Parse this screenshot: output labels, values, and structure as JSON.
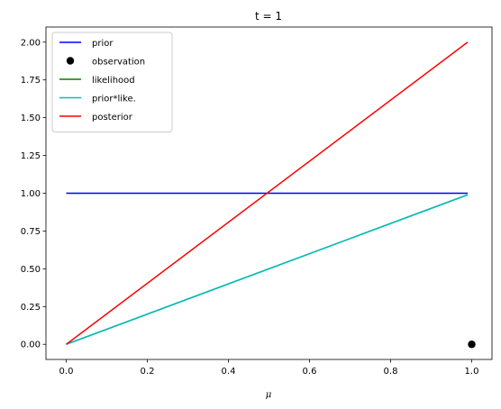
{
  "chart_data": {
    "type": "line",
    "title": "t = 1",
    "xlabel": "μ",
    "ylabel": "",
    "xlim": [
      -0.05,
      1.05
    ],
    "ylim": [
      -0.1,
      2.1
    ],
    "xticks": [
      0.0,
      0.2,
      0.4,
      0.6,
      0.8,
      1.0
    ],
    "xtick_labels": [
      "0.0",
      "0.2",
      "0.4",
      "0.6",
      "0.8",
      "1.0"
    ],
    "yticks": [
      0.0,
      0.25,
      0.5,
      0.75,
      1.0,
      1.25,
      1.5,
      1.75,
      2.0
    ],
    "ytick_labels": [
      "0.00",
      "0.25",
      "0.50",
      "0.75",
      "1.00",
      "1.25",
      "1.50",
      "1.75",
      "2.00"
    ],
    "grid": false,
    "legend_position": "top-left",
    "series": [
      {
        "name": "prior",
        "kind": "line",
        "color": "#0000ff",
        "x": [
          0.0,
          0.99
        ],
        "y": [
          1.0,
          1.0
        ]
      },
      {
        "name": "observation",
        "kind": "point",
        "color": "#000000",
        "x": [
          1.0
        ],
        "y": [
          0.0
        ]
      },
      {
        "name": "likelihood",
        "kind": "line",
        "color": "#008000",
        "x": [
          0.0,
          0.99
        ],
        "y": [
          0.0,
          0.99
        ]
      },
      {
        "name": "prior*like.",
        "kind": "line",
        "color": "#00bfbf",
        "x": [
          0.0,
          0.99
        ],
        "y": [
          0.0,
          0.99
        ]
      },
      {
        "name": "posterior",
        "kind": "line",
        "color": "#ff0000",
        "x": [
          0.0,
          0.99
        ],
        "y": [
          0.0,
          2.0
        ]
      }
    ]
  }
}
